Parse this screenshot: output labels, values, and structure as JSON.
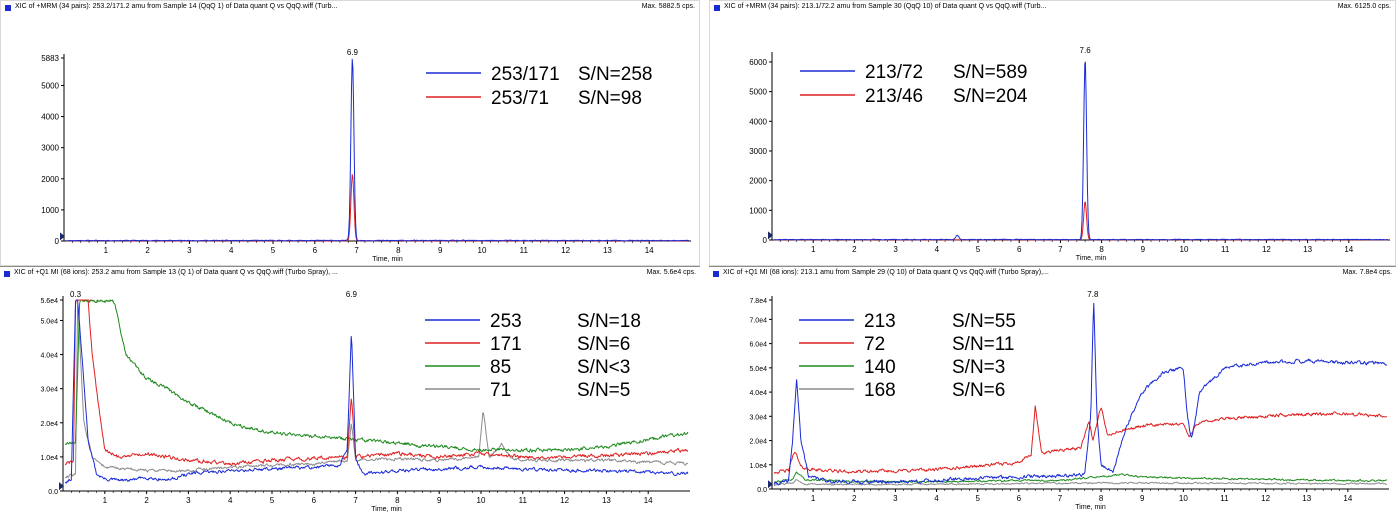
{
  "colors": {
    "blue": "#1a2bd6",
    "red": "#e02020",
    "green": "#1e8a1e",
    "gray": "#8c8c8c",
    "header_square": "#1a2bd6"
  },
  "panels": [
    {
      "id": "p1",
      "header_title": "XIC of +MRM (34 pairs): 253.2/171.2 amu from Sample 14 (QqQ 1) of Data quant Q vs QqQ.wiff (Turb...",
      "header_max": "Max. 5882.5 cps.",
      "x_title": "Time, min",
      "peak_label": "6.9",
      "legend_rows": [
        {
          "c1": "253/171",
          "c2": "S/N=258"
        },
        {
          "c1": "253/71",
          "c2": "S/N=98"
        }
      ]
    },
    {
      "id": "p2",
      "header_title": "XIC of +MRM (34 pairs): 213.1/72.2 amu from Sample 30 (QqQ 10) of Data quant Q vs QqQ.wiff (Turb...",
      "header_max": "Max. 6125.0 cps.",
      "x_title": "Time, min",
      "peak_label": "7.6",
      "legend_rows": [
        {
          "c1": "213/72",
          "c2": "S/N=589"
        },
        {
          "c1": "213/46",
          "c2": "S/N=204"
        }
      ]
    },
    {
      "id": "p3",
      "header_title": "XIC of +Q1 MI (68 ions): 253.2 amu from Sample 13 (Q 1) of Data quant Q vs QqQ.wiff (Turbo Spray), ...",
      "header_max": "Max. 5.6e4 cps.",
      "x_title": "Time, min",
      "peak_label": "6.9",
      "peak_label2": "0.3",
      "legend_rows": [
        {
          "c1": "253",
          "c2": "S/N=18"
        },
        {
          "c1": "171",
          "c2": "S/N=6"
        },
        {
          "c1": "85",
          "c2": "S/N<3"
        },
        {
          "c1": "71",
          "c2": "S/N=5"
        }
      ]
    },
    {
      "id": "p4",
      "header_title": "XIC of +Q1 MI (68 ions): 213.1 amu from Sample 29 (Q 10) of Data quant Q vs QqQ.wiff (Turbo Spray),...",
      "header_max": "Max. 7.8e4 cps.",
      "x_title": "Time, min",
      "peak_label": "7.8",
      "legend_rows": [
        {
          "c1": "213",
          "c2": "S/N=55"
        },
        {
          "c1": "72",
          "c2": "S/N=11"
        },
        {
          "c1": "140",
          "c2": "S/N=3"
        },
        {
          "c1": "168",
          "c2": "S/N=6"
        }
      ]
    }
  ],
  "chart_data": [
    {
      "type": "line",
      "xlabel": "Time, min",
      "xlim": [
        0,
        15
      ],
      "ylim": [
        0,
        5883
      ],
      "y_ticks": [
        "0",
        "1000",
        "2000",
        "3000",
        "4000",
        "5000",
        "5883"
      ],
      "x_ticks": [
        "1",
        "2",
        "3",
        "4",
        "5",
        "6",
        "7",
        "8",
        "9",
        "10",
        "11",
        "12",
        "13",
        "14"
      ],
      "series": [
        {
          "name": "253/171",
          "color": "blue",
          "baseline": 15,
          "noise": 20,
          "seed": 11,
          "peaks": [
            {
              "x": 6.9,
              "h": 5883,
              "w": 0.05
            }
          ]
        },
        {
          "name": "253/71",
          "color": "red",
          "baseline": 8,
          "noise": 10,
          "seed": 12,
          "peaks": [
            {
              "x": 6.9,
              "h": 2150,
              "w": 0.05
            }
          ]
        }
      ],
      "annotations": [
        {
          "x": 6.9,
          "text": "6.9"
        }
      ]
    },
    {
      "type": "line",
      "xlabel": "Time, min",
      "xlim": [
        0,
        15
      ],
      "ylim": [
        0,
        6200
      ],
      "y_ticks": [
        "0",
        "1000",
        "2000",
        "3000",
        "4000",
        "5000",
        "6000"
      ],
      "x_ticks": [
        "1",
        "2",
        "3",
        "4",
        "5",
        "6",
        "7",
        "8",
        "9",
        "10",
        "11",
        "12",
        "13",
        "14"
      ],
      "series": [
        {
          "name": "213/72",
          "color": "blue",
          "baseline": 15,
          "noise": 18,
          "seed": 21,
          "peaks": [
            {
              "x": 4.5,
              "h": 140,
              "w": 0.05
            },
            {
              "x": 7.6,
              "h": 6125,
              "w": 0.05
            }
          ]
        },
        {
          "name": "213/46",
          "color": "red",
          "baseline": 8,
          "noise": 10,
          "seed": 22,
          "peaks": [
            {
              "x": 7.6,
              "h": 1300,
              "w": 0.05
            }
          ]
        }
      ],
      "annotations": [
        {
          "x": 7.6,
          "text": "7.6"
        }
      ]
    },
    {
      "type": "line",
      "xlabel": "Time, min",
      "xlim": [
        0,
        15
      ],
      "ylim": [
        0,
        56000
      ],
      "y_ticks": [
        "0.0",
        "1.0e4",
        "2.0e4",
        "3.0e4",
        "4.0e4",
        "5.0e4",
        "5.6e4"
      ],
      "x_ticks": [
        "1",
        "2",
        "3",
        "4",
        "5",
        "6",
        "7",
        "8",
        "9",
        "10",
        "11",
        "12",
        "13",
        "14"
      ],
      "series": [
        {
          "name": "253",
          "color": "blue",
          "points": [
            [
              0,
              2500
            ],
            [
              0.2,
              3500
            ],
            [
              0.3,
              56000
            ],
            [
              0.35,
              56000
            ],
            [
              0.45,
              40000
            ],
            [
              0.6,
              15000
            ],
            [
              0.8,
              5000
            ],
            [
              1.0,
              3500
            ],
            [
              1.5,
              3000
            ],
            [
              2,
              4000
            ],
            [
              2.5,
              3200
            ],
            [
              3,
              5000
            ],
            [
              4,
              6000
            ],
            [
              5,
              6500
            ],
            [
              6,
              7000
            ],
            [
              6.6,
              7500
            ],
            [
              6.8,
              12000
            ],
            [
              6.9,
              47000
            ],
            [
              7.0,
              9000
            ],
            [
              7.2,
              5000
            ],
            [
              8,
              6000
            ],
            [
              9,
              6500
            ],
            [
              10,
              7000
            ],
            [
              11,
              6500
            ],
            [
              12,
              6000
            ],
            [
              13,
              6000
            ],
            [
              14,
              5500
            ],
            [
              14.9,
              5000
            ]
          ],
          "noise": 800,
          "seed": 31
        },
        {
          "name": "171",
          "color": "red",
          "points": [
            [
              0,
              8000
            ],
            [
              0.25,
              8500
            ],
            [
              0.3,
              56000
            ],
            [
              0.45,
              56000
            ],
            [
              0.6,
              56000
            ],
            [
              0.7,
              40000
            ],
            [
              0.85,
              25000
            ],
            [
              1.0,
              12000
            ],
            [
              1.3,
              10000
            ],
            [
              2,
              11000
            ],
            [
              3,
              9000
            ],
            [
              4,
              8000
            ],
            [
              5,
              9000
            ],
            [
              6,
              9500
            ],
            [
              6.8,
              10000
            ],
            [
              6.9,
              28000
            ],
            [
              7.0,
              10000
            ],
            [
              8,
              11000
            ],
            [
              9,
              10000
            ],
            [
              10,
              11000
            ],
            [
              11,
              10000
            ],
            [
              12,
              10000
            ],
            [
              13,
              10500
            ],
            [
              14,
              11000
            ],
            [
              14.9,
              12000
            ]
          ],
          "noise": 900,
          "seed": 32
        },
        {
          "name": "85",
          "color": "green",
          "points": [
            [
              0,
              14000
            ],
            [
              0.3,
              14000
            ],
            [
              0.4,
              56000
            ],
            [
              1.2,
              56000
            ],
            [
              1.3,
              52000
            ],
            [
              1.5,
              40000
            ],
            [
              2,
              33000
            ],
            [
              2.5,
              30000
            ],
            [
              3,
              26000
            ],
            [
              4,
              20000
            ],
            [
              5,
              17000
            ],
            [
              6,
              16000
            ],
            [
              7,
              15000
            ],
            [
              8,
              14000
            ],
            [
              9,
              13000
            ],
            [
              10,
              12000
            ],
            [
              11,
              12000
            ],
            [
              12,
              12000
            ],
            [
              13,
              13000
            ],
            [
              14,
              15000
            ],
            [
              14.9,
              17000
            ]
          ],
          "noise": 900,
          "seed": 33
        },
        {
          "name": "71",
          "color": "gray",
          "points": [
            [
              0,
              4000
            ],
            [
              0.3,
              5000
            ],
            [
              0.35,
              56000
            ],
            [
              0.5,
              20000
            ],
            [
              0.7,
              10000
            ],
            [
              1.0,
              7000
            ],
            [
              2,
              6000
            ],
            [
              3,
              6000
            ],
            [
              4,
              7000
            ],
            [
              5,
              7500
            ],
            [
              6,
              8000
            ],
            [
              6.8,
              9000
            ],
            [
              6.9,
              20000
            ],
            [
              7.0,
              9000
            ],
            [
              8,
              9500
            ],
            [
              9,
              9000
            ],
            [
              9.95,
              10000
            ],
            [
              10.05,
              24000
            ],
            [
              10.2,
              10000
            ],
            [
              10.5,
              14000
            ],
            [
              10.7,
              10000
            ],
            [
              11,
              9000
            ],
            [
              12,
              9000
            ],
            [
              13,
              9000
            ],
            [
              14,
              8500
            ],
            [
              14.9,
              8000
            ]
          ],
          "noise": 700,
          "seed": 34
        }
      ],
      "annotations": [
        {
          "x": 6.9,
          "text": "6.9"
        },
        {
          "x": 0.3,
          "text": "0.3"
        }
      ]
    },
    {
      "type": "line",
      "xlabel": "Time, min",
      "xlim": [
        0,
        15
      ],
      "ylim": [
        0,
        78000
      ],
      "y_ticks": [
        "0.0",
        "1.0e4",
        "2.0e4",
        "3.0e4",
        "4.0e4",
        "5.0e4",
        "6.0e4",
        "7.0e4",
        "7.8e4"
      ],
      "x_ticks": [
        "1",
        "2",
        "3",
        "4",
        "5",
        "6",
        "7",
        "8",
        "9",
        "10",
        "11",
        "12",
        "13",
        "14"
      ],
      "series": [
        {
          "name": "213",
          "color": "blue",
          "points": [
            [
              0,
              2000
            ],
            [
              0.4,
              3000
            ],
            [
              0.5,
              20000
            ],
            [
              0.6,
              46000
            ],
            [
              0.7,
              20000
            ],
            [
              0.9,
              5000
            ],
            [
              1.5,
              3000
            ],
            [
              3,
              3000
            ],
            [
              4,
              3500
            ],
            [
              5,
              4500
            ],
            [
              6,
              5000
            ],
            [
              7,
              5500
            ],
            [
              7.6,
              6000
            ],
            [
              7.75,
              30000
            ],
            [
              7.82,
              78000
            ],
            [
              7.9,
              30000
            ],
            [
              8.0,
              10000
            ],
            [
              8.3,
              7000
            ],
            [
              8.6,
              25000
            ],
            [
              9,
              40000
            ],
            [
              9.5,
              48000
            ],
            [
              10,
              50000
            ],
            [
              10.1,
              30000
            ],
            [
              10.2,
              20000
            ],
            [
              10.4,
              40000
            ],
            [
              11,
              50000
            ],
            [
              12,
              52000
            ],
            [
              13,
              53000
            ],
            [
              14,
              52000
            ],
            [
              14.9,
              52000
            ]
          ],
          "noise": 1200,
          "seed": 41
        },
        {
          "name": "72",
          "color": "red",
          "points": [
            [
              0,
              7000
            ],
            [
              0.4,
              7500
            ],
            [
              0.55,
              16000
            ],
            [
              0.7,
              9000
            ],
            [
              1,
              8000
            ],
            [
              2,
              7000
            ],
            [
              3,
              7500
            ],
            [
              4,
              8000
            ],
            [
              5,
              9500
            ],
            [
              6,
              11000
            ],
            [
              6.3,
              14000
            ],
            [
              6.4,
              34000
            ],
            [
              6.55,
              15000
            ],
            [
              7,
              16000
            ],
            [
              7.5,
              17000
            ],
            [
              7.7,
              28000
            ],
            [
              7.8,
              20000
            ],
            [
              8.0,
              34000
            ],
            [
              8.15,
              22000
            ],
            [
              8.5,
              24000
            ],
            [
              9,
              26000
            ],
            [
              10,
              27000
            ],
            [
              10.15,
              21000
            ],
            [
              10.3,
              27000
            ],
            [
              11,
              29000
            ],
            [
              12,
              30000
            ],
            [
              13,
              31000
            ],
            [
              14,
              31000
            ],
            [
              14.9,
              30000
            ]
          ],
          "noise": 1100,
          "seed": 42
        },
        {
          "name": "140",
          "color": "green",
          "points": [
            [
              0,
              3000
            ],
            [
              0.5,
              4000
            ],
            [
              0.6,
              7000
            ],
            [
              0.8,
              4000
            ],
            [
              2,
              3000
            ],
            [
              4,
              3000
            ],
            [
              6,
              3500
            ],
            [
              7,
              3500
            ],
            [
              8,
              5000
            ],
            [
              8.5,
              6000
            ],
            [
              9,
              5000
            ],
            [
              10,
              4500
            ],
            [
              12,
              4000
            ],
            [
              14,
              3500
            ],
            [
              14.9,
              3500
            ]
          ],
          "noise": 600,
          "seed": 43
        },
        {
          "name": "168",
          "color": "gray",
          "points": [
            [
              0,
              1500
            ],
            [
              0.5,
              2500
            ],
            [
              0.6,
              4000
            ],
            [
              0.8,
              2000
            ],
            [
              2,
              1800
            ],
            [
              4,
              2000
            ],
            [
              6,
              2200
            ],
            [
              8,
              2500
            ],
            [
              9,
              2500
            ],
            [
              10,
              2400
            ],
            [
              12,
              2300
            ],
            [
              14,
              2200
            ],
            [
              14.9,
              2200
            ]
          ],
          "noise": 500,
          "seed": 44
        }
      ],
      "annotations": [
        {
          "x": 7.8,
          "text": "7.8"
        }
      ]
    }
  ]
}
